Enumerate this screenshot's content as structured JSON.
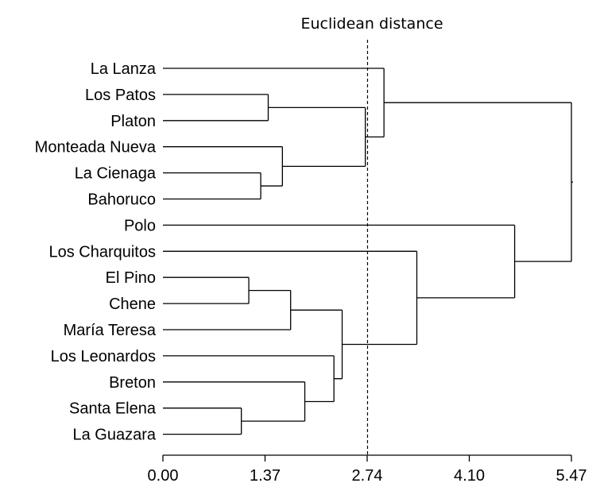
{
  "chart_data": {
    "type": "dendrogram",
    "title": "Euclidean distance",
    "xlabel": "",
    "ylabel": "",
    "xlim": [
      0,
      5.47
    ],
    "x_ticks": [
      "0.00",
      "1.37",
      "2.74",
      "4.10",
      "5.47"
    ],
    "cutoff": 2.74,
    "leaves": [
      "La Lanza",
      "Los Patos",
      "Platon",
      "Monteada Nueva",
      "La Cienaga",
      "Bahoruco",
      "Polo",
      "Los Charquitos",
      "El Pino",
      "Chene",
      "María Teresa",
      "Los Leonardos",
      "Breton",
      "Santa Elena",
      "La Guazara"
    ],
    "merges": [
      {
        "a": 13,
        "b": 14,
        "height": 1.05
      },
      {
        "a": 8,
        "b": 9,
        "height": 1.15
      },
      {
        "a": 4,
        "b": 5,
        "height": 1.31
      },
      {
        "a": 1,
        "b": 2,
        "height": 1.41
      },
      {
        "a": 3,
        "b": 17,
        "height": 1.6
      },
      {
        "a": 16,
        "b": 10,
        "height": 1.71
      },
      {
        "a": 12,
        "b": 15,
        "height": 1.9
      },
      {
        "a": 11,
        "b": 21,
        "height": 2.29
      },
      {
        "a": 20,
        "b": 22,
        "height": 2.4
      },
      {
        "a": 18,
        "b": 19,
        "height": 2.71
      },
      {
        "a": 0,
        "b": 24,
        "height": 2.96
      },
      {
        "a": 7,
        "b": 23,
        "height": 3.4
      },
      {
        "a": 6,
        "b": 26,
        "height": 4.71
      },
      {
        "a": 25,
        "b": 27,
        "height": 5.47
      }
    ]
  }
}
